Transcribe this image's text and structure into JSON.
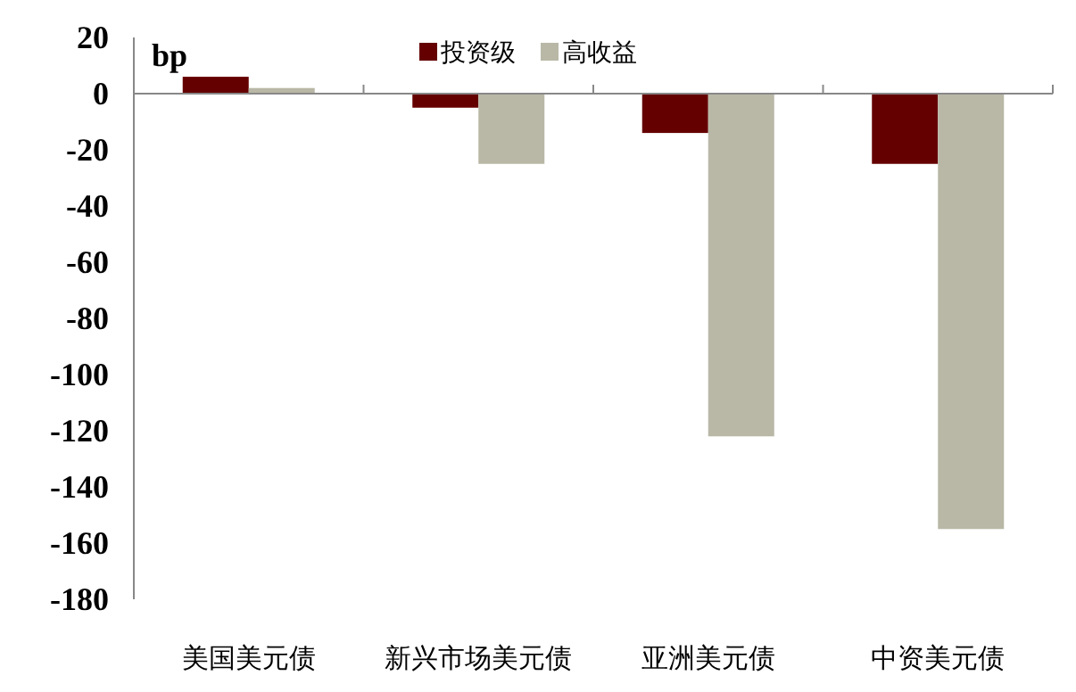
{
  "chart_data": {
    "type": "bar",
    "ylabel": "bp",
    "categories": [
      "美国美元债",
      "新兴市场美元债",
      "亚洲美元债",
      "中资美元债"
    ],
    "series": [
      {
        "name": "投资级",
        "color": "#640000",
        "values": [
          6,
          -5,
          -14,
          -25
        ]
      },
      {
        "name": "高收益",
        "color": "#b9b8a7",
        "values": [
          2,
          -25,
          -122,
          -155
        ]
      }
    ],
    "ylim": [
      -180,
      20
    ],
    "yticks": [
      20,
      0,
      -20,
      -40,
      -60,
      -80,
      -100,
      -120,
      -140,
      -160,
      -180
    ],
    "legend": "top"
  }
}
